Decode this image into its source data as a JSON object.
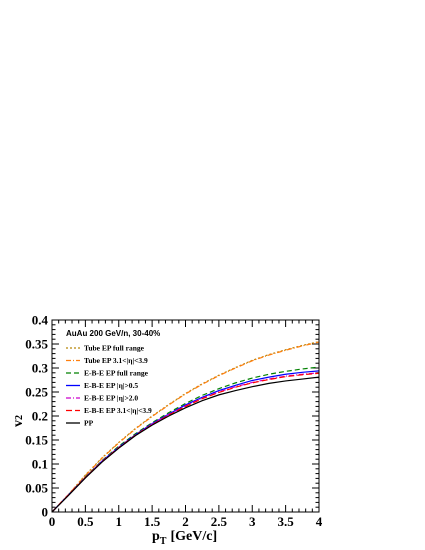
{
  "chart_data": {
    "type": "line",
    "annotation": "AuAu 200 GeV/n, 30-40%",
    "xlabel": "p",
    "xlabel_sub": "T",
    "xlabel_unit": "[GeV/c]",
    "ylabel": "v",
    "ylabel_sub": "2",
    "xlim": [
      0,
      4
    ],
    "ylim": [
      0,
      0.4
    ],
    "xticks": [
      0,
      0.5,
      1,
      1.5,
      2,
      2.5,
      3,
      3.5,
      4
    ],
    "xtick_labels": [
      "0",
      "0.5",
      "1",
      "1.5",
      "2",
      "2.5",
      "3",
      "3.5",
      "4"
    ],
    "yticks": [
      0,
      0.05,
      0.1,
      0.15,
      0.2,
      0.25,
      0.3,
      0.35,
      0.4
    ],
    "ytick_labels": [
      "0",
      "0.05",
      "0.1",
      "0.15",
      "0.2",
      "0.25",
      "0.3",
      "0.35",
      "0.4"
    ],
    "legend_position": "top-left",
    "x": [
      0,
      0.25,
      0.5,
      0.75,
      1.0,
      1.25,
      1.5,
      1.75,
      2.0,
      2.25,
      2.5,
      2.75,
      3.0,
      3.25,
      3.5,
      3.75,
      4.0
    ],
    "series": [
      {
        "name": "Tube EP full range",
        "color": "#b8860b",
        "dash": "2,2",
        "values": [
          0,
          0.037,
          0.077,
          0.113,
          0.145,
          0.174,
          0.2,
          0.224,
          0.247,
          0.267,
          0.285,
          0.301,
          0.316,
          0.328,
          0.338,
          0.347,
          0.355
        ]
      },
      {
        "name": "Tube EP 3.1<|η|<3.9",
        "color": "#ff7f0e",
        "dash": "5,2,1,2",
        "values": [
          0,
          0.037,
          0.076,
          0.112,
          0.144,
          0.173,
          0.199,
          0.223,
          0.246,
          0.266,
          0.284,
          0.3,
          0.315,
          0.327,
          0.337,
          0.346,
          0.354
        ]
      },
      {
        "name": "E-B-E EP full range",
        "color": "#008000",
        "dash": "5,3",
        "values": [
          0,
          0.036,
          0.073,
          0.107,
          0.137,
          0.163,
          0.186,
          0.207,
          0.226,
          0.243,
          0.257,
          0.269,
          0.279,
          0.287,
          0.293,
          0.298,
          0.302
        ]
      },
      {
        "name": "E-B-E EP |η|>0.5",
        "color": "#0000ff",
        "dash": "",
        "values": [
          0,
          0.036,
          0.072,
          0.106,
          0.135,
          0.161,
          0.184,
          0.204,
          0.223,
          0.239,
          0.253,
          0.264,
          0.274,
          0.281,
          0.287,
          0.291,
          0.294
        ]
      },
      {
        "name": "E-B-E EP |η|>2.0",
        "color": "#cc00cc",
        "dash": "5,2,1,2",
        "values": [
          0,
          0.036,
          0.072,
          0.105,
          0.134,
          0.16,
          0.183,
          0.203,
          0.221,
          0.237,
          0.25,
          0.261,
          0.27,
          0.277,
          0.283,
          0.287,
          0.29
        ]
      },
      {
        "name": "E-B-E EP 3.1<|η|<3.9",
        "color": "#ff0000",
        "dash": "6,3",
        "values": [
          0,
          0.036,
          0.072,
          0.105,
          0.134,
          0.16,
          0.182,
          0.202,
          0.22,
          0.236,
          0.249,
          0.26,
          0.269,
          0.276,
          0.282,
          0.286,
          0.289
        ]
      },
      {
        "name": "PP",
        "color": "#000000",
        "dash": "",
        "values": [
          0,
          0.035,
          0.071,
          0.104,
          0.133,
          0.159,
          0.181,
          0.2,
          0.217,
          0.232,
          0.244,
          0.253,
          0.261,
          0.268,
          0.273,
          0.277,
          0.281
        ]
      }
    ]
  }
}
